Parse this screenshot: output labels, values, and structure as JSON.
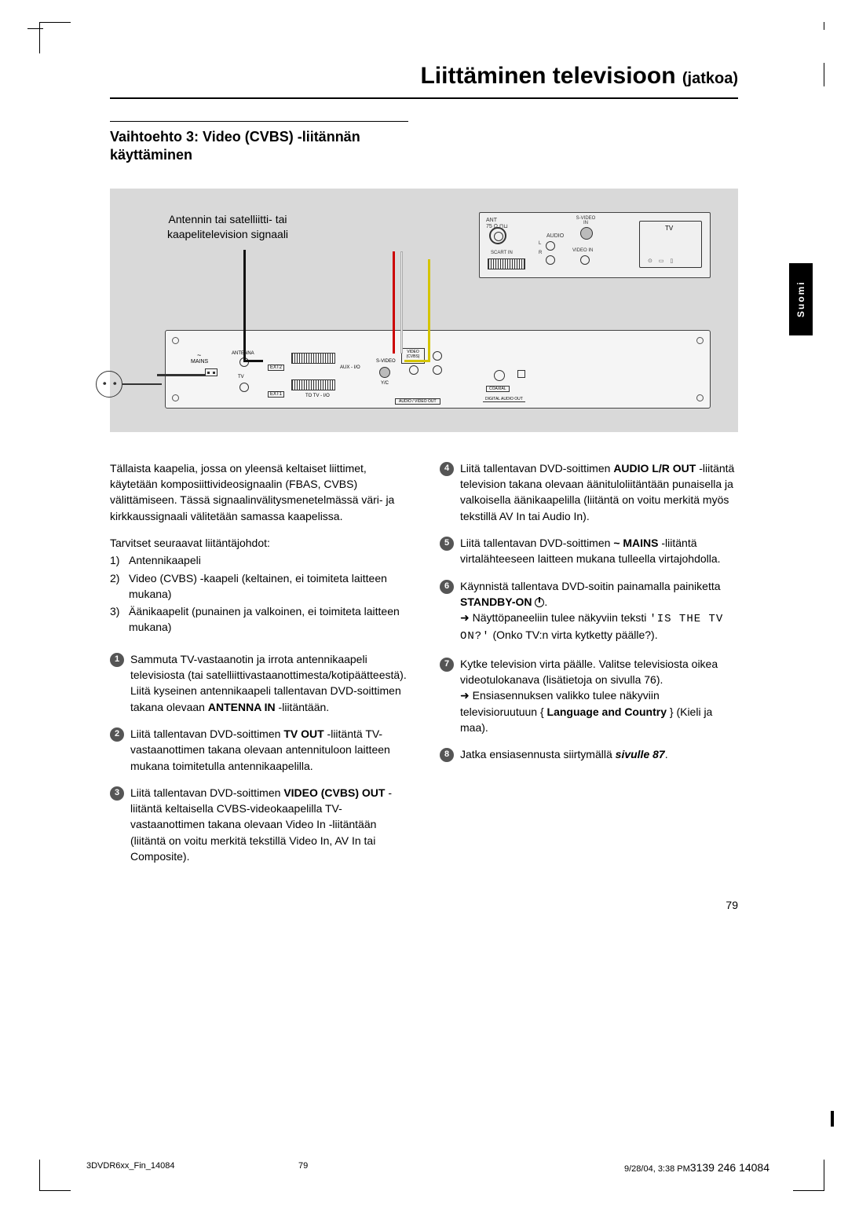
{
  "header": {
    "title": "Liittäminen televisioon",
    "subtitle": "(jatkoa)"
  },
  "sectionTitle": "Vaihtoehto 3: Video (CVBS) -liitännän käyttäminen",
  "sideTab": "Suomi",
  "diagram": {
    "caption": "Antennin tai satelliitti- tai kaapelitelevision signaali",
    "tv": {
      "ant": "ANT\n75 Ω",
      "svideo": "S-VIDEO IN",
      "audio": "AUDIO",
      "videoin": "VIDEO IN",
      "scart": "SCART IN",
      "tv": "TV"
    },
    "dvd": {
      "mains": "MAINS",
      "antenna": "ANTENNA",
      "tv": "TV",
      "ext2": "EXT2",
      "aux": "AUX - I/O",
      "ext1": "EXT1",
      "totv": "TO TV - I/O",
      "svideo": "S-VIDEO",
      "yuv": "Y/C",
      "video": "VIDEO (CVBS)",
      "avout": "AUDIO / VIDEO OUT",
      "coax": "COAXIAL",
      "daout": "DIGITAL AUDIO OUT"
    },
    "colors": {
      "bg": "#d9d9d9",
      "black": "#111111",
      "yellow": "#d4c400",
      "red": "#cc0000",
      "white": "#eeeeee"
    }
  },
  "leftCol": {
    "intro": "Tällaista kaapelia, jossa on yleensä keltaiset liittimet, käytetään komposiittivideosignaalin (FBAS, CVBS) välittämiseen. Tässä signaalinvälitysmenetelmässä väri- ja kirkkaussignaali välitetään samassa kaapelissa.",
    "needs": "Tarvitset seuraavat liitäntäjohdot:",
    "items": [
      "Antennikaapeli",
      "Video (CVBS) -kaapeli (keltainen, ei toimiteta laitteen mukana)",
      "Äänikaapelit (punainen ja valkoinen, ei toimiteta laitteen mukana)"
    ],
    "steps": [
      {
        "n": "1",
        "html": "Sammuta TV-vastaanotin ja irrota antennikaapeli televisiosta (tai satelliittivastaanottimesta/kotipäätteestä). Liitä kyseinen antennikaapeli tallentavan DVD-soittimen takana olevaan <b>ANTENNA IN</b> -liitäntään."
      },
      {
        "n": "2",
        "html": "Liitä tallentavan DVD-soittimen <b>TV OUT</b> -liitäntä TV-vastaanottimen takana olevaan antennituloon laitteen mukana toimitetulla antennikaapelilla."
      },
      {
        "n": "3",
        "html": "Liitä tallentavan DVD-soittimen <b>VIDEO (CVBS) OUT</b> -liitäntä keltaisella CVBS-videokaapelilla TV-vastaanottimen takana olevaan Video In -liitäntään (liitäntä on voitu merkitä tekstillä Video In, AV In tai Composite)."
      }
    ]
  },
  "rightCol": {
    "steps": [
      {
        "n": "4",
        "html": "Liitä tallentavan DVD-soittimen <b>AUDIO L/R OUT</b> -liitäntä television takana olevaan äänituloliitäntään punaisella ja valkoisella äänikaapelilla (liitäntä on voitu merkitä myös tekstillä AV In tai Audio In)."
      },
      {
        "n": "5",
        "html": "Liitä tallentavan DVD-soittimen <b>~ MAINS</b> -liitäntä virtalähteeseen laitteen mukana tulleella virtajohdolla."
      },
      {
        "n": "6",
        "html": "Käynnistä tallentava DVD-soitin painamalla painiketta <b>STANDBY-ON</b> <span class='pwr-icon'></span>.<br><span class='arrow'>➜</span> Näyttöpaneeliin tulee näkyviin teksti <span class='lcd'>'IS THE TV ON?'</span> (Onko TV:n virta kytketty päälle?)."
      },
      {
        "n": "7",
        "html": "Kytke television virta päälle. Valitse televisiosta oikea videotulokanava (lisätietoja on sivulla 76).<br><span class='arrow'>➜</span> Ensiasennuksen valikko tulee näkyviin televisioruutuun { <b>Language and Country</b> } (Kieli ja maa)."
      },
      {
        "n": "8",
        "html": "Jatka ensiasennusta siirtymällä <span class='italic'>sivulle 87</span>."
      }
    ]
  },
  "pageNum": "79",
  "footer": {
    "left": "3DVDR6xx_Fin_14084",
    "mid": "79",
    "right_small": "9/28/04, 3:38 PM",
    "right_big": "3139 246 14084"
  }
}
